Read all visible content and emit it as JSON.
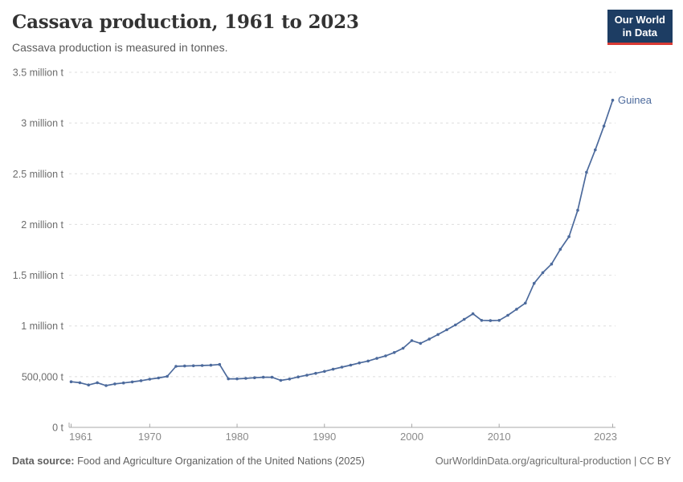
{
  "header": {
    "title": "Cassava production, 1961 to 2023",
    "subtitle": "Cassava production is measured in tonnes.",
    "logo": {
      "line1": "Our World",
      "line2": "in Data"
    }
  },
  "footer": {
    "source_label": "Data source:",
    "source_text": "Food and Agriculture Organization of the United Nations (2025)",
    "credit": "OurWorldinData.org/agricultural-production | CC BY"
  },
  "colors": {
    "series_blue": "#4c6a9c",
    "logo_navy": "#1d3d63",
    "logo_red": "#d93a34",
    "gridline": "#dedede",
    "axis": "#a8a8a8",
    "y_label": "#6d6d6d",
    "x_label": "#8a8a8a"
  },
  "chart_data": {
    "type": "line",
    "title": "Cassava production, 1961 to 2023",
    "unit": "tonnes",
    "xlabel": "",
    "ylabel": "",
    "xlim": [
      1961,
      2023
    ],
    "ylim": [
      0,
      3500000
    ],
    "grid": "horizontal-dashed",
    "legend_position": "end-of-line-label",
    "x_ticks": [
      1961,
      1970,
      1980,
      1990,
      2000,
      2010,
      2023
    ],
    "y_ticks": [
      {
        "v": 0,
        "label": "0 t"
      },
      {
        "v": 500000,
        "label": "500,000 t"
      },
      {
        "v": 1000000,
        "label": "1 million t"
      },
      {
        "v": 1500000,
        "label": "1.5 million t"
      },
      {
        "v": 2000000,
        "label": "2 million t"
      },
      {
        "v": 2500000,
        "label": "2.5 million t"
      },
      {
        "v": 3000000,
        "label": "3 million t"
      },
      {
        "v": 3500000,
        "label": "3.5 million t"
      }
    ],
    "series": [
      {
        "name": "Guinea",
        "color": "#4c6a9c",
        "x": [
          1961,
          1962,
          1963,
          1964,
          1965,
          1966,
          1967,
          1968,
          1969,
          1970,
          1971,
          1972,
          1973,
          1974,
          1975,
          1976,
          1977,
          1978,
          1979,
          1980,
          1981,
          1982,
          1983,
          1984,
          1985,
          1986,
          1987,
          1988,
          1989,
          1990,
          1991,
          1992,
          1993,
          1994,
          1995,
          1996,
          1997,
          1998,
          1999,
          2000,
          2001,
          2002,
          2003,
          2004,
          2005,
          2006,
          2007,
          2008,
          2009,
          2010,
          2011,
          2012,
          2013,
          2014,
          2015,
          2016,
          2017,
          2018,
          2019,
          2020,
          2021,
          2022,
          2023
        ],
        "values": [
          450000,
          440000,
          418000,
          440000,
          412000,
          428000,
          438000,
          448000,
          460000,
          475000,
          487000,
          503000,
          602000,
          605000,
          607000,
          610000,
          613000,
          620000,
          478000,
          478000,
          483000,
          489000,
          494000,
          494000,
          463000,
          477000,
          497000,
          515000,
          533000,
          552000,
          573000,
          594000,
          614000,
          635000,
          654000,
          680000,
          705000,
          738000,
          780000,
          855000,
          828000,
          870000,
          915000,
          962000,
          1010000,
          1065000,
          1120000,
          1055000,
          1052000,
          1055000,
          1105000,
          1165000,
          1225000,
          1420000,
          1525000,
          1610000,
          1755000,
          1880000,
          2140000,
          2515000,
          2735000,
          2970000,
          3225000
        ]
      }
    ]
  }
}
